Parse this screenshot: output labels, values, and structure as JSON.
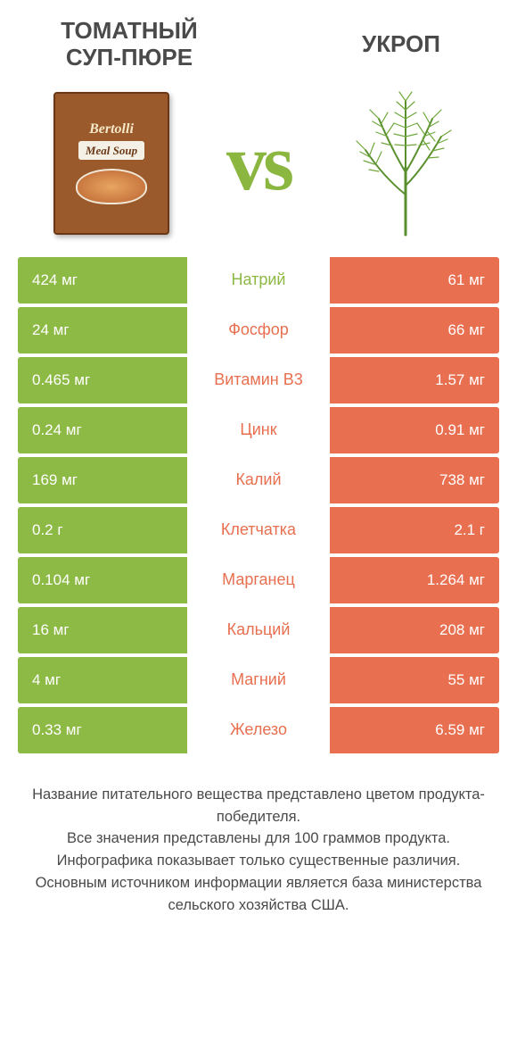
{
  "colors": {
    "left_bg": "#8db945",
    "right_bg": "#e86f4f",
    "left_label": "#8db945",
    "right_label": "#e86f4f",
    "row_text": "#ffffff",
    "vs": "#8bb63f"
  },
  "titles": {
    "left": "Томатный суп-пюре",
    "right": "Укроп"
  },
  "vs_text": "vs",
  "soup_brand": "Bertolli",
  "soup_label": "Meal Soup",
  "rows": [
    {
      "name": "Натрий",
      "left": "424 мг",
      "right": "61 мг",
      "winner": "left"
    },
    {
      "name": "Фосфор",
      "left": "24 мг",
      "right": "66 мг",
      "winner": "right"
    },
    {
      "name": "Витамин B3",
      "left": "0.465 мг",
      "right": "1.57 мг",
      "winner": "right"
    },
    {
      "name": "Цинк",
      "left": "0.24 мг",
      "right": "0.91 мг",
      "winner": "right"
    },
    {
      "name": "Калий",
      "left": "169 мг",
      "right": "738 мг",
      "winner": "right"
    },
    {
      "name": "Клетчатка",
      "left": "0.2 г",
      "right": "2.1 г",
      "winner": "right"
    },
    {
      "name": "Марганец",
      "left": "0.104 мг",
      "right": "1.264 мг",
      "winner": "right"
    },
    {
      "name": "Кальций",
      "left": "16 мг",
      "right": "208 мг",
      "winner": "right"
    },
    {
      "name": "Магний",
      "left": "4 мг",
      "right": "55 мг",
      "winner": "right"
    },
    {
      "name": "Железо",
      "left": "0.33 мг",
      "right": "6.59 мг",
      "winner": "right"
    }
  ],
  "footer_lines": [
    "Название питательного вещества представлено цветом продукта-победителя.",
    "Все значения представлены для 100 граммов продукта.",
    "Инфографика показывает только существенные различия.",
    "Основным источником информации является база министерства сельского хозяйства США."
  ]
}
